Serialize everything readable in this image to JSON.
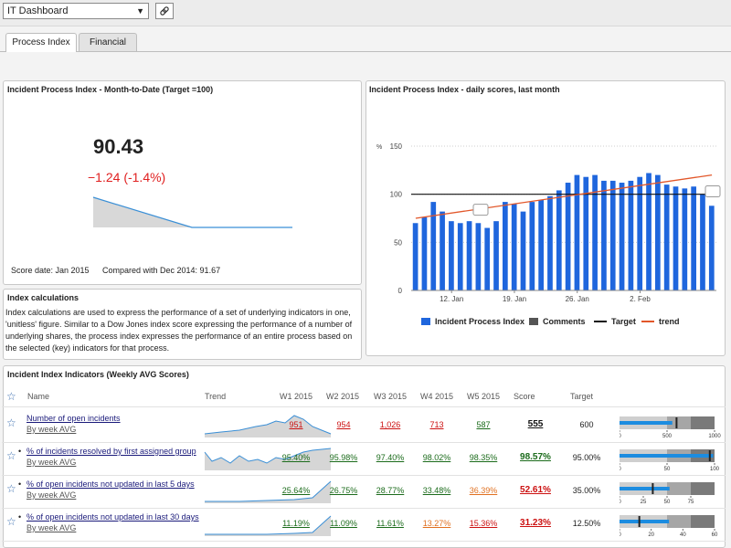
{
  "dashboard_selector": "IT Dashboard",
  "tabs": [
    "Process Index",
    "Financial"
  ],
  "mtd_panel": {
    "title": "Incident Process Index - Month-to-Date (Target =100)",
    "value": "90.43",
    "delta": "−1.24 (-1.4%)",
    "score_date": "Score date: Jan 2015",
    "compared": "Compared with Dec 2014: 91.67"
  },
  "calc_panel": {
    "title": "Index calculations",
    "text": "Index calculations are used to express the performance of a set of underlying indicators in one, 'unitless' figure. Similar to a Dow Jones index score expressing the performance of a number of underlying shares, the process index expresses the performance of an entire process based on the selected (key) indicators for that process."
  },
  "daily_panel": {
    "title": "Incident Process Index - daily scores, last month"
  },
  "chart_data": {
    "type": "bar",
    "y_unit": "%",
    "ylim": [
      0,
      150
    ],
    "y_ticks": [
      "0",
      "50",
      "100",
      "150"
    ],
    "x_ticks": [
      "12. Jan",
      "19. Jan",
      "26. Jan",
      "2. Feb"
    ],
    "target": 100,
    "trend": [
      75,
      120
    ],
    "series": [
      {
        "name": "Incident Process Index",
        "values": [
          70,
          76,
          92,
          82,
          72,
          70,
          72,
          70,
          65,
          72,
          92,
          90,
          82,
          92,
          94,
          98,
          104,
          112,
          120,
          118,
          120,
          114,
          114,
          112,
          114,
          118,
          122,
          120,
          110,
          108,
          106,
          108,
          100,
          88
        ]
      }
    ],
    "legend": [
      "Incident Process Index",
      "Comments",
      "Target",
      "trend"
    ],
    "colors": {
      "bar": "#1f66dd",
      "target": "#111111",
      "trend": "#e2572a",
      "comments": "#555555"
    }
  },
  "indicators": {
    "title": "Incident Index Indicators (Weekly AVG Scores)",
    "columns": [
      "Name",
      "Trend",
      "W1 2015",
      "W2 2015",
      "W3 2015",
      "W4 2015",
      "W5 2015",
      "Score",
      "Target"
    ],
    "rows": [
      {
        "name": "Number of open incidents",
        "sub": "By week AVG",
        "values": [
          "951",
          "954",
          "1,026",
          "713",
          "587"
        ],
        "colors": [
          "red",
          "red",
          "red",
          "red",
          "green"
        ],
        "score": "555",
        "score_color": "#111111",
        "target": "600",
        "bullet": {
          "max": 1000,
          "ticks": [
            "0",
            "500",
            "1000"
          ],
          "actual": 555,
          "target": 600
        }
      },
      {
        "name": "% of incidents resolved by first assigned group",
        "sub": "By week AVG",
        "values": [
          "95.40%",
          "95.98%",
          "97.40%",
          "98.02%",
          "98.35%"
        ],
        "colors": [
          "green",
          "green",
          "green",
          "green",
          "green"
        ],
        "score": "98.57%",
        "score_color": "#1b6b1b",
        "target": "95.00%",
        "bullet": {
          "max": 100,
          "ticks": [
            "0",
            "50",
            "100"
          ],
          "actual": 98.57,
          "target": 95
        }
      },
      {
        "name": "% of open incidents not updated in last 5 days",
        "sub": "By week AVG",
        "values": [
          "25.64%",
          "26.75%",
          "28.77%",
          "33.48%",
          "36.39%"
        ],
        "colors": [
          "green",
          "green",
          "green",
          "green",
          "orange"
        ],
        "score": "52.61%",
        "score_color": "#cc1111",
        "target": "35.00%",
        "bullet": {
          "max": 100,
          "ticks": [
            "0",
            "25",
            "50",
            "75"
          ],
          "actual": 52.61,
          "target": 35
        }
      },
      {
        "name": "% of open incidents not updated in last 30 days",
        "sub": "By week AVG",
        "values": [
          "11.19%",
          "11.09%",
          "11.61%",
          "13.27%",
          "15.36%"
        ],
        "colors": [
          "green",
          "green",
          "green",
          "orange",
          "red"
        ],
        "score": "31.23%",
        "score_color": "#cc1111",
        "target": "12.50%",
        "bullet": {
          "max": 60,
          "ticks": [
            "0",
            "20",
            "40",
            "60"
          ],
          "actual": 31.23,
          "target": 12.5
        }
      }
    ]
  }
}
